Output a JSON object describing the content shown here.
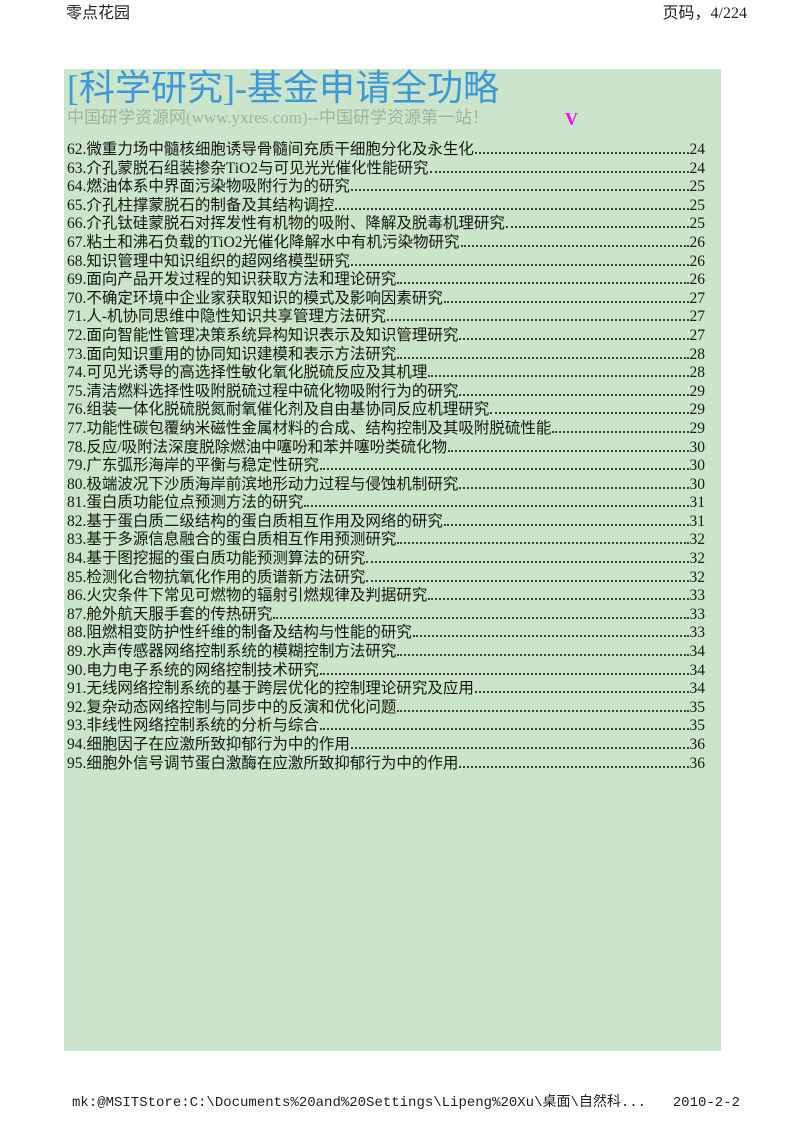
{
  "header": {
    "site": "零点花园",
    "page_indicator": "页码，4/224"
  },
  "document": {
    "title": "[科学研究]-基金申请全功略",
    "subtitle": "中国研学资源网(www.yxres.com)--中国研学资源第一站！",
    "marker": "V",
    "toc": [
      {
        "label": "62.微重力场中髓核细胞诱导骨髓间充质干细胞分化及永生化",
        "page": "24"
      },
      {
        "label": "63.介孔蒙脱石组装掺杂TiO2与可见光光催化性能研究",
        "page": "24"
      },
      {
        "label": "64.燃油体系中界面污染物吸附行为的研究",
        "page": "25"
      },
      {
        "label": "65.介孔柱撑蒙脱石的制备及其结构调控",
        "page": "25"
      },
      {
        "label": "66.介孔钛硅蒙脱石对挥发性有机物的吸附、降解及脱毒机理研究",
        "page": "25"
      },
      {
        "label": "67.粘土和沸石负载的TiO2光催化降解水中有机污染物研究",
        "page": "26"
      },
      {
        "label": "68.知识管理中知识组织的超网络模型研究",
        "page": "26"
      },
      {
        "label": "69.面向产品开发过程的知识获取方法和理论研究",
        "page": "26"
      },
      {
        "label": "70.不确定环境中企业家获取知识的模式及影响因素研究",
        "page": "27"
      },
      {
        "label": "71.人-机协同思维中隐性知识共享管理方法研究",
        "page": "27"
      },
      {
        "label": "72.面向智能性管理决策系统异构知识表示及知识管理研究",
        "page": "27"
      },
      {
        "label": "73.面向知识重用的协同知识建模和表示方法研究",
        "page": "28"
      },
      {
        "label": "74.可见光诱导的高选择性敏化氧化脱硫反应及其机理",
        "page": "28"
      },
      {
        "label": "75.清洁燃料选择性吸附脱硫过程中硫化物吸附行为的研究",
        "page": "29"
      },
      {
        "label": "76.组装一体化脱硫脱氮耐氧催化剂及自由基协同反应机理研究",
        "page": "29"
      },
      {
        "label": "77.功能性碳包覆纳米磁性金属材料的合成、结构控制及其吸附脱硫性能",
        "page": "29"
      },
      {
        "label": "78.反应/吸附法深度脱除燃油中噻吩和苯并噻吩类硫化物",
        "page": "30"
      },
      {
        "label": "79.广东弧形海岸的平衡与稳定性研究",
        "page": "30"
      },
      {
        "label": "80.极端波况下沙质海岸前滨地形动力过程与侵蚀机制研究",
        "page": "30"
      },
      {
        "label": "81.蛋白质功能位点预测方法的研究",
        "page": "31"
      },
      {
        "label": "82.基于蛋白质二级结构的蛋白质相互作用及网络的研究",
        "page": "31"
      },
      {
        "label": "83.基于多源信息融合的蛋白质相互作用预测研究",
        "page": "32"
      },
      {
        "label": "84.基于图挖掘的蛋白质功能预测算法的研究",
        "page": "32"
      },
      {
        "label": "85.检测化合物抗氧化作用的质谱新方法研究",
        "page": "32"
      },
      {
        "label": "86.火灾条件下常见可燃物的辐射引燃规律及判据研究",
        "page": "33"
      },
      {
        "label": "87.舱外航天服手套的传热研究",
        "page": "33"
      },
      {
        "label": "88.阻燃相变防护性纤维的制备及结构与性能的研究",
        "page": "33"
      },
      {
        "label": "89.水声传感器网络控制系统的模糊控制方法研究",
        "page": "34"
      },
      {
        "label": "90.电力电子系统的网络控制技术研究",
        "page": "34"
      },
      {
        "label": "91.无线网络控制系统的基于跨层优化的控制理论研究及应用",
        "page": "34"
      },
      {
        "label": "92.复杂动态网络控制与同步中的反演和优化问题",
        "page": "35"
      },
      {
        "label": "93.非线性网络控制系统的分析与综合",
        "page": "35"
      },
      {
        "label": "94.细胞因子在应激所致抑郁行为中的作用",
        "page": "36"
      },
      {
        "label": "95.细胞外信号调节蛋白激酶在应激所致抑郁行为中的作用",
        "page": "36"
      }
    ]
  },
  "footer": {
    "source_path": "mk:@MSITStore:C:\\Documents%20and%20Settings\\Lipeng%20Xu\\桌面\\自然科...",
    "date": "2010-2-2"
  },
  "colors": {
    "page_background": "#cbe5cb",
    "title_text": "#3e97d9",
    "subtitle_text": "#9eb39f",
    "marker_text": "#ff00ff",
    "body_text": "#161616"
  }
}
